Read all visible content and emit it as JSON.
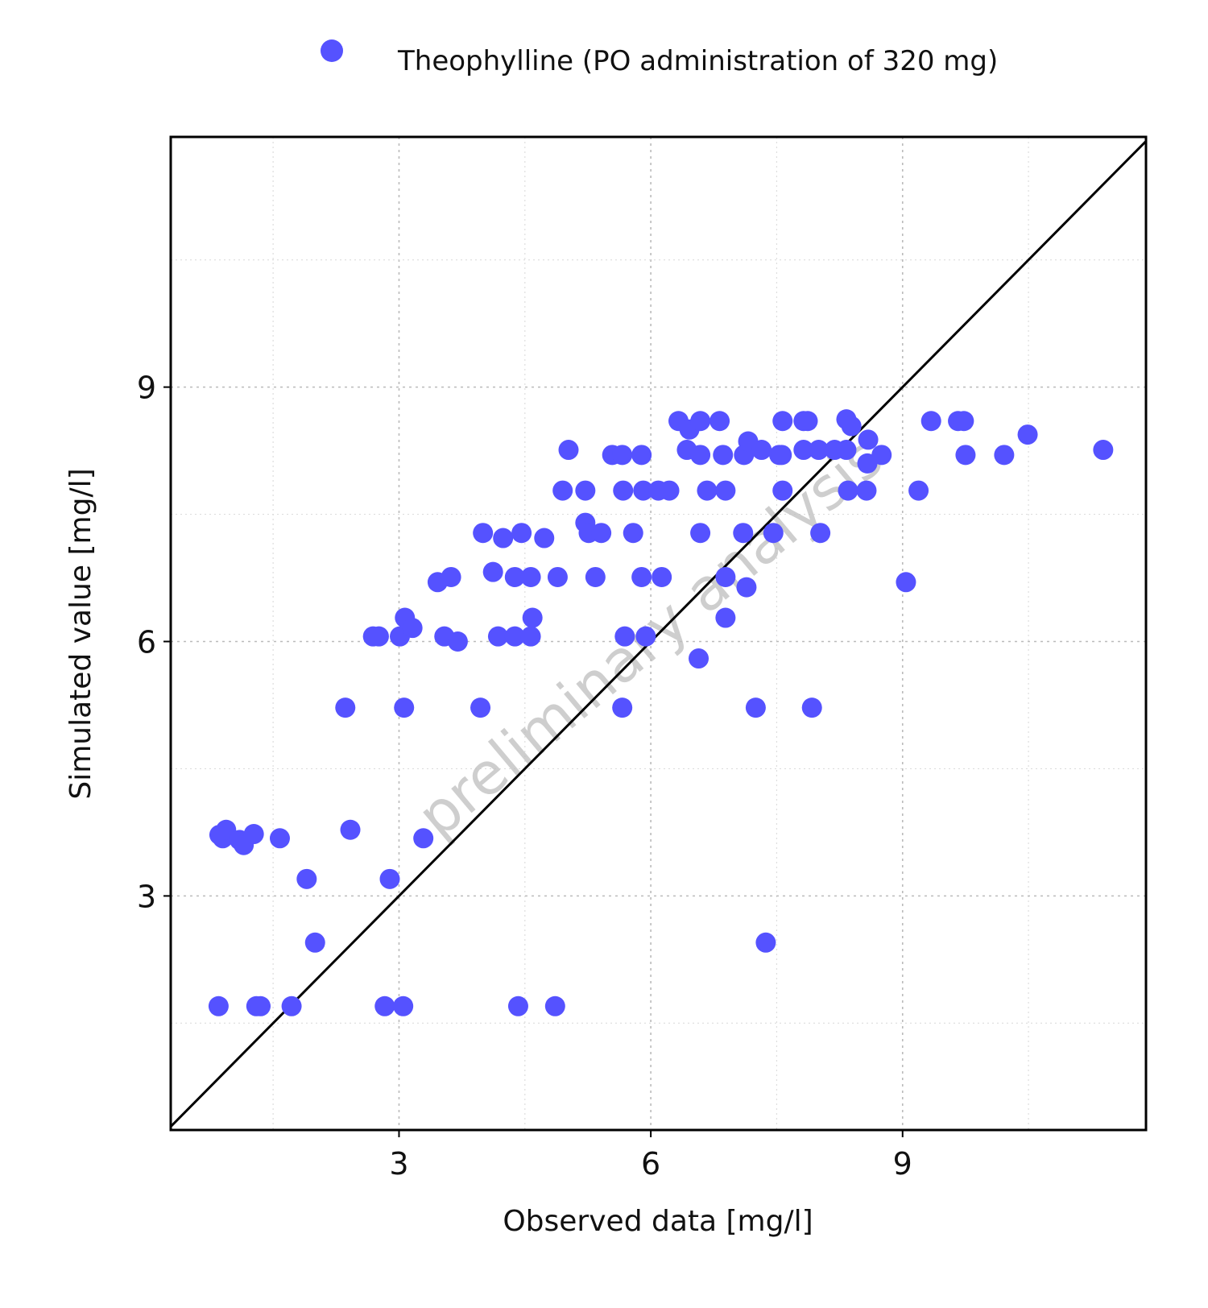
{
  "chart_data": {
    "type": "scatter",
    "xlabel": "Observed data [mg/l]",
    "ylabel": "Simulated value [mg/l]",
    "xlim": [
      0.28,
      11.9
    ],
    "ylim": [
      0.24,
      11.95
    ],
    "xticks": [
      3,
      6,
      9
    ],
    "yticks": [
      3,
      6,
      9
    ],
    "minor_grid_step": 1.5,
    "grid": true,
    "legend_position": "top-center",
    "watermark": "preliminary analysis",
    "identity_line": true,
    "colors": {
      "series": "#5552ff",
      "line": "#000000",
      "grid": "#cccccc"
    },
    "series": [
      {
        "name": "Theophylline (PO administration of 320 mg)",
        "points": [
          [
            0.85,
            1.7
          ],
          [
            1.3,
            1.7
          ],
          [
            1.35,
            1.7
          ],
          [
            1.72,
            1.7
          ],
          [
            2.83,
            1.7
          ],
          [
            3.05,
            1.7
          ],
          [
            4.42,
            1.7
          ],
          [
            4.86,
            1.7
          ],
          [
            2.0,
            2.45
          ],
          [
            7.37,
            2.45
          ],
          [
            1.9,
            3.2
          ],
          [
            2.89,
            3.2
          ],
          [
            0.86,
            3.72
          ],
          [
            0.9,
            3.68
          ],
          [
            0.94,
            3.78
          ],
          [
            1.1,
            3.66
          ],
          [
            1.15,
            3.6
          ],
          [
            1.27,
            3.73
          ],
          [
            1.58,
            3.68
          ],
          [
            2.42,
            3.78
          ],
          [
            3.29,
            3.68
          ],
          [
            2.36,
            5.22
          ],
          [
            3.06,
            5.22
          ],
          [
            3.97,
            5.22
          ],
          [
            5.66,
            5.22
          ],
          [
            7.25,
            5.22
          ],
          [
            7.92,
            5.22
          ],
          [
            6.57,
            5.8
          ],
          [
            2.69,
            6.06
          ],
          [
            2.76,
            6.06
          ],
          [
            3.01,
            6.06
          ],
          [
            3.54,
            6.06
          ],
          [
            3.7,
            6.0
          ],
          [
            4.18,
            6.06
          ],
          [
            4.38,
            6.06
          ],
          [
            4.57,
            6.06
          ],
          [
            5.69,
            6.06
          ],
          [
            5.94,
            6.06
          ],
          [
            3.07,
            6.28
          ],
          [
            3.16,
            6.16
          ],
          [
            4.59,
            6.28
          ],
          [
            6.89,
            6.28
          ],
          [
            3.46,
            6.7
          ],
          [
            3.62,
            6.76
          ],
          [
            4.12,
            6.82
          ],
          [
            4.38,
            6.76
          ],
          [
            4.57,
            6.76
          ],
          [
            4.89,
            6.76
          ],
          [
            5.34,
            6.76
          ],
          [
            5.89,
            6.76
          ],
          [
            6.13,
            6.76
          ],
          [
            6.89,
            6.76
          ],
          [
            7.14,
            6.64
          ],
          [
            9.04,
            6.7
          ],
          [
            4.0,
            7.28
          ],
          [
            4.24,
            7.22
          ],
          [
            4.46,
            7.28
          ],
          [
            4.73,
            7.22
          ],
          [
            5.22,
            7.4
          ],
          [
            5.26,
            7.28
          ],
          [
            5.41,
            7.28
          ],
          [
            5.79,
            7.28
          ],
          [
            6.59,
            7.28
          ],
          [
            7.1,
            7.28
          ],
          [
            7.46,
            7.28
          ],
          [
            8.02,
            7.28
          ],
          [
            4.95,
            7.78
          ],
          [
            5.22,
            7.78
          ],
          [
            5.67,
            7.78
          ],
          [
            5.91,
            7.78
          ],
          [
            6.09,
            7.78
          ],
          [
            6.22,
            7.78
          ],
          [
            6.67,
            7.78
          ],
          [
            6.89,
            7.78
          ],
          [
            7.57,
            7.78
          ],
          [
            8.35,
            7.78
          ],
          [
            8.57,
            7.78
          ],
          [
            9.19,
            7.78
          ],
          [
            5.02,
            8.26
          ],
          [
            5.54,
            8.2
          ],
          [
            5.66,
            8.2
          ],
          [
            5.89,
            8.2
          ],
          [
            6.43,
            8.26
          ],
          [
            6.59,
            8.2
          ],
          [
            6.86,
            8.2
          ],
          [
            7.11,
            8.2
          ],
          [
            7.16,
            8.36
          ],
          [
            7.32,
            8.26
          ],
          [
            7.53,
            8.2
          ],
          [
            7.56,
            8.2
          ],
          [
            7.82,
            8.26
          ],
          [
            8.0,
            8.26
          ],
          [
            8.19,
            8.26
          ],
          [
            8.33,
            8.26
          ],
          [
            8.59,
            8.38
          ],
          [
            8.58,
            8.1
          ],
          [
            8.75,
            8.2
          ],
          [
            9.75,
            8.2
          ],
          [
            10.21,
            8.2
          ],
          [
            10.49,
            8.44
          ],
          [
            11.39,
            8.26
          ],
          [
            6.33,
            8.6
          ],
          [
            6.46,
            8.5
          ],
          [
            6.59,
            8.6
          ],
          [
            6.82,
            8.6
          ],
          [
            7.57,
            8.6
          ],
          [
            7.82,
            8.6
          ],
          [
            7.87,
            8.6
          ],
          [
            8.33,
            8.62
          ],
          [
            8.39,
            8.54
          ],
          [
            9.34,
            8.6
          ],
          [
            9.66,
            8.6
          ],
          [
            9.73,
            8.6
          ]
        ]
      }
    ]
  }
}
